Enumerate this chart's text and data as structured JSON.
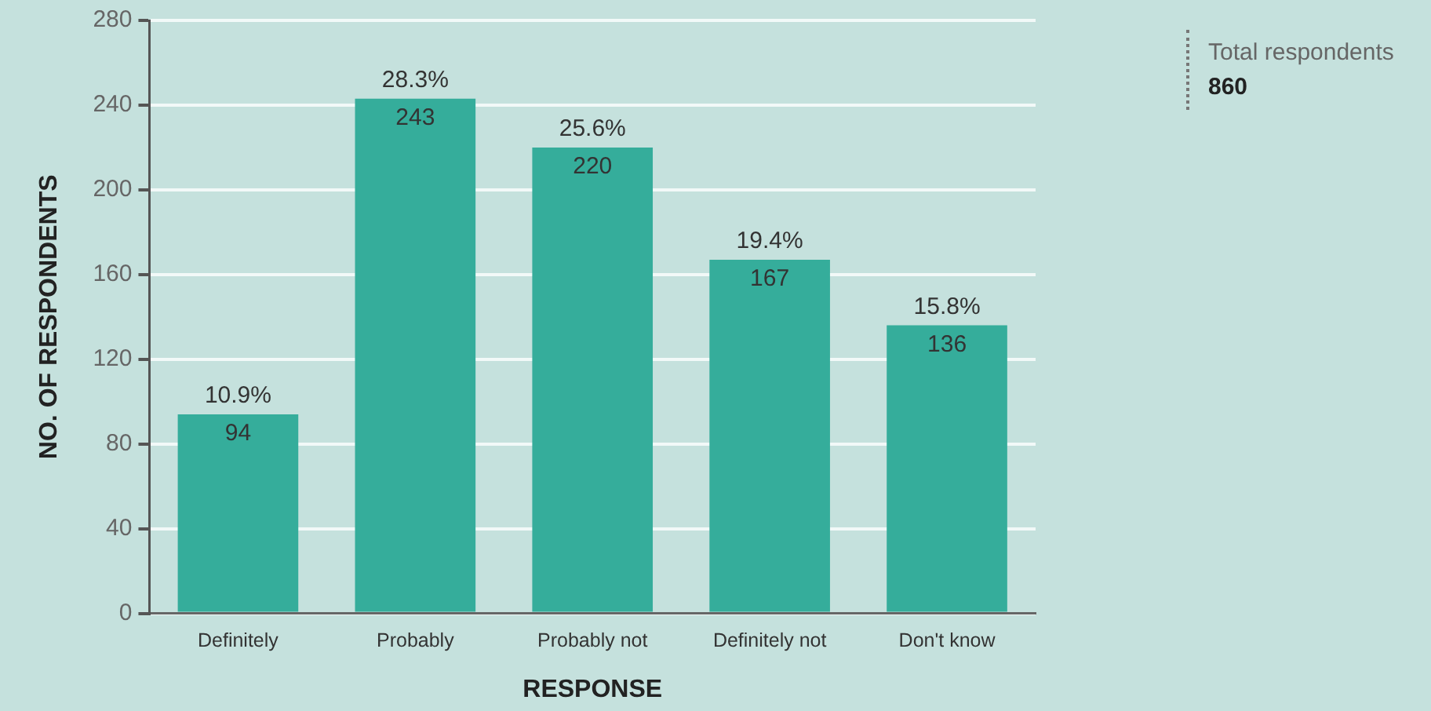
{
  "chart_data": {
    "type": "bar",
    "xlabel": "RESPONSE",
    "ylabel": "NO. OF RESPONDENTS",
    "categories": [
      "Definitely",
      "Probably",
      "Probably not",
      "Definitely not",
      "Don't know"
    ],
    "values": [
      94,
      243,
      220,
      167,
      136
    ],
    "color": "#35ad9b",
    "ylim": [
      0,
      280
    ],
    "yticks": [
      0,
      40,
      80,
      120,
      160,
      200,
      240,
      280
    ],
    "grid": "y",
    "data_labels": true,
    "annotations": [
      {
        "text": "10.9%",
        "x": "Definitely",
        "y": 94
      },
      {
        "text": "28.3%",
        "x": "Probably",
        "y": 243
      },
      {
        "text": "25.6%",
        "x": "Probably not",
        "y": 220
      },
      {
        "text": "19.4%",
        "x": "Definitely not",
        "y": 167
      },
      {
        "text": "15.8%",
        "x": "Don't know",
        "y": 136
      },
      "Total respondents",
      "860"
    ]
  }
}
